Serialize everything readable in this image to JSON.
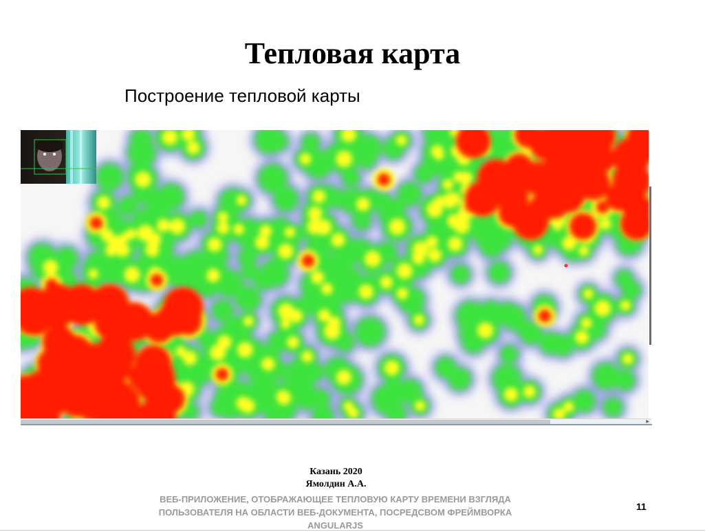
{
  "slide": {
    "title": "Тепловая карта",
    "subtitle": "Построение тепловой карты"
  },
  "heatmap": {
    "colors": {
      "low": "#9fa0ea",
      "mid": "#3ee33e",
      "high_mid": "#ffff20",
      "high": "#ff1a00",
      "background": "#f6f6f6"
    },
    "gaze_point_color": "#ff3030"
  },
  "footer": {
    "city_year": "Казань 2020",
    "author": "Ямолдин А.А.",
    "caption_line1": "ВЕБ-ПРИЛОЖЕНИЕ, ОТОБРАЖАЮЩЕЕ ТЕПЛОВУЮ КАРТУ ВРЕМЕНИ ВЗГЛЯДА",
    "caption_line2": "ПОЛЬЗОВАТЕЛЯ НА ОБЛАСТИ ВЕБ-ДОКУМЕНТА, ПОСРЕДСВОМ ФРЕЙМВОРКА",
    "caption_line3": "ANGULARJS",
    "page_number": "11"
  }
}
